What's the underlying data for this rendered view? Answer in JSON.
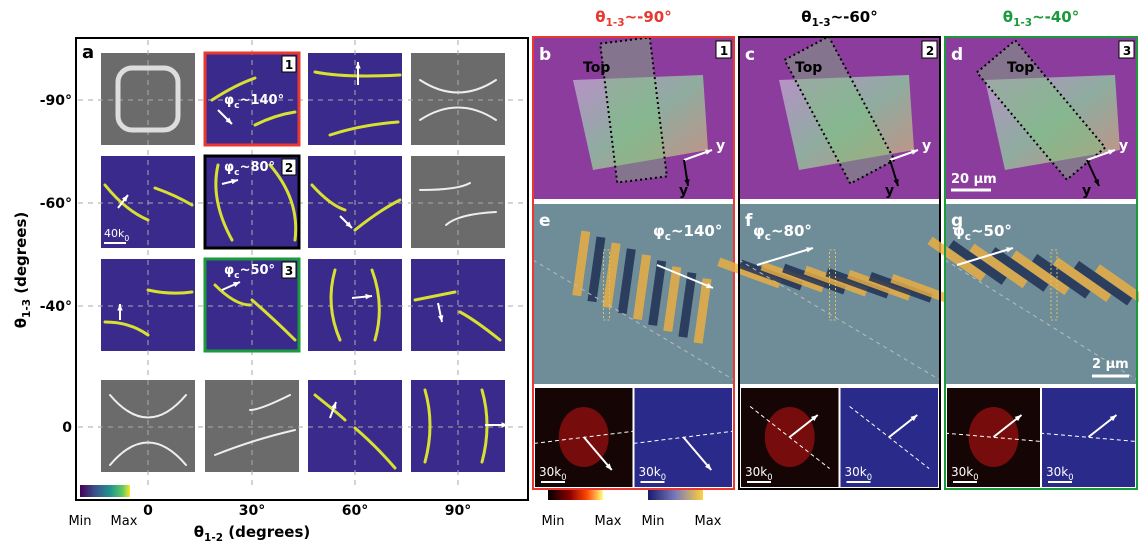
{
  "panel_a": {
    "label": "a",
    "y_axis_title": {
      "base": "θ",
      "sub": "1-3",
      "rest": " (degrees)"
    },
    "x_axis_title": {
      "base": "θ",
      "sub": "1-2",
      "rest": " (degrees)"
    },
    "y_ticks": [
      "-90°",
      "-60°",
      "-40°",
      "0"
    ],
    "x_ticks": [
      "0",
      "30°",
      "60°",
      "90°"
    ],
    "colorbar": {
      "min": "Min",
      "max": "Max"
    },
    "cell_badges": [
      "1",
      "2",
      "3"
    ],
    "cell_phis": [
      {
        "base": "φ",
        "sub": "c",
        "rest": "~140°"
      },
      {
        "base": "φ",
        "sub": "c",
        "rest": "~80°"
      },
      {
        "base": "φ",
        "sub": "c",
        "rest": "~50°"
      }
    ],
    "scale_bar": {
      "base": "40k",
      "sub": "0"
    }
  },
  "columns": [
    {
      "title": {
        "base": "θ",
        "sub": "1-3",
        "rest": "~-90°"
      },
      "top_label": "b",
      "badge": "1",
      "top_text": "Top",
      "axes": [
        "y",
        "y"
      ],
      "mid_label": "e",
      "phi": {
        "base": "φ",
        "sub": "c",
        "rest": "~140°"
      },
      "insets": [
        {
          "base": "30k",
          "sub": "0"
        },
        {
          "base": "30k",
          "sub": "0"
        }
      ]
    },
    {
      "title": {
        "base": "θ",
        "sub": "1-3",
        "rest": "~-60°"
      },
      "top_label": "c",
      "badge": "2",
      "top_text": "Top",
      "axes": [
        "y",
        "y"
      ],
      "mid_label": "f",
      "phi": {
        "base": "φ",
        "sub": "c",
        "rest": "~80°"
      },
      "insets": [
        {
          "base": "30k",
          "sub": "0"
        },
        {
          "base": "30k",
          "sub": "0"
        }
      ]
    },
    {
      "title": {
        "base": "θ",
        "sub": "1-3",
        "rest": "~-40°"
      },
      "top_label": "d",
      "badge": "3",
      "top_text": "Top",
      "axes": [
        "y",
        "y"
      ],
      "top_scale": "20 μm",
      "mid_label": "g",
      "phi": {
        "base": "φ",
        "sub": "c",
        "rest": "~50°"
      },
      "mid_scale": "2 μm",
      "insets": [
        {
          "base": "30k",
          "sub": "0"
        },
        {
          "base": "30k",
          "sub": "0"
        }
      ]
    }
  ],
  "colorbars_right": [
    {
      "min": "Min",
      "max": "Max"
    },
    {
      "min": "Min",
      "max": "Max"
    }
  ]
}
